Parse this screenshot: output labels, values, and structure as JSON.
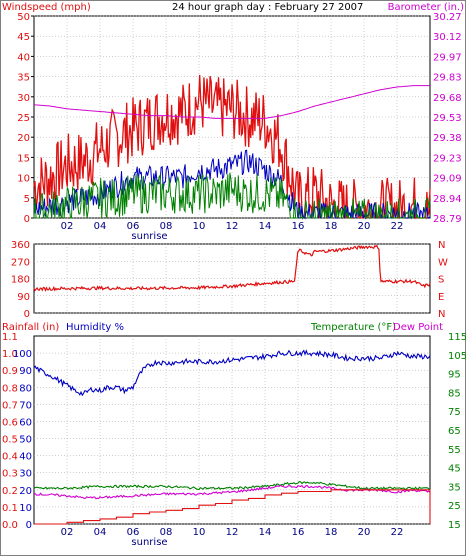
{
  "header": {
    "left_label": "Windspeed (mph)",
    "title": "24 hour graph day : February 27 2007",
    "right_label": "Barometer (in.)"
  },
  "colors": {
    "red": "#e01010",
    "blue": "#0000c0",
    "green": "#008000",
    "magenta": "#d000d0",
    "black": "#000000",
    "grid": "#a0a0a0"
  },
  "chart_data": [
    {
      "id": "wind",
      "type": "line",
      "x_range": [
        0,
        24
      ],
      "x_ticks": [
        "02",
        "04",
        "06",
        "08",
        "10",
        "12",
        "14",
        "16",
        "18",
        "20",
        "22"
      ],
      "x_tick_hours": [
        2,
        4,
        6,
        8,
        10,
        12,
        14,
        16,
        18,
        20,
        22
      ],
      "sunrise_label": "sunrise",
      "sunrise_hour": 7.0,
      "y_left_range": [
        0,
        50
      ],
      "y_left_ticks": [
        0,
        5,
        10,
        15,
        20,
        25,
        30,
        35,
        40,
        45,
        50
      ],
      "y_right_range": [
        28.79,
        30.27
      ],
      "y_right_ticks": [
        "28.79",
        "28.94",
        "29.09",
        "29.23",
        "29.38",
        "29.53",
        "29.68",
        "29.83",
        "29.97",
        "30.12",
        "30.27"
      ],
      "series": [
        {
          "axis": "left",
          "color": "#e01010",
          "style": "gust",
          "x": [
            0,
            1,
            2,
            3,
            4,
            5,
            6,
            7,
            8,
            9,
            10,
            11,
            12,
            13,
            14,
            15,
            16,
            17,
            18,
            19,
            20,
            21,
            22,
            23,
            24
          ],
          "values": [
            8,
            10,
            13,
            14,
            17,
            20,
            22,
            24,
            26,
            26,
            29,
            27,
            27,
            25,
            24,
            18,
            4,
            6,
            3,
            2,
            2,
            2,
            2,
            3,
            1
          ],
          "jitter": 8
        },
        {
          "axis": "left",
          "color": "#0000c0",
          "style": "average",
          "x": [
            0,
            1,
            2,
            3,
            4,
            5,
            6,
            7,
            8,
            9,
            10,
            11,
            12,
            13,
            14,
            15,
            16,
            17,
            18,
            19,
            20,
            21,
            22,
            23,
            24
          ],
          "values": [
            2,
            3,
            4,
            5,
            6,
            8,
            10,
            10,
            10,
            10,
            12,
            12,
            13,
            14,
            12,
            9,
            1,
            1,
            1,
            1,
            1,
            1,
            1,
            1,
            0
          ],
          "jitter": 3
        },
        {
          "axis": "left",
          "color": "#008000",
          "style": "speed",
          "x": [
            0,
            1,
            2,
            3,
            4,
            5,
            6,
            7,
            8,
            9,
            10,
            11,
            12,
            13,
            14,
            15,
            16,
            17,
            18,
            19,
            20,
            21,
            22,
            23,
            24
          ],
          "values": [
            1,
            2,
            3,
            4,
            5,
            5,
            6,
            6,
            6,
            6,
            6,
            6,
            7,
            6,
            6,
            5,
            0,
            0,
            0,
            0,
            0,
            0,
            0,
            0,
            0
          ],
          "jitter": 5
        },
        {
          "axis": "right",
          "color": "#d000d0",
          "style": "barometer",
          "x": [
            0,
            1,
            2,
            3,
            4,
            5,
            6,
            7,
            8,
            9,
            10,
            11,
            12,
            13,
            14,
            15,
            16,
            17,
            18,
            19,
            20,
            21,
            22,
            23,
            24
          ],
          "values": [
            29.62,
            29.61,
            29.59,
            29.58,
            29.57,
            29.56,
            29.55,
            29.54,
            29.54,
            29.53,
            29.53,
            29.52,
            29.52,
            29.52,
            29.52,
            29.54,
            29.57,
            29.61,
            29.64,
            29.67,
            29.7,
            29.73,
            29.75,
            29.76,
            29.76
          ],
          "jitter": 0
        }
      ]
    },
    {
      "id": "direction",
      "type": "line",
      "x_range": [
        0,
        24
      ],
      "y_left_range": [
        0,
        360
      ],
      "y_left_ticks": [
        0,
        90,
        180,
        270,
        360
      ],
      "y_right_labels": [
        "N",
        "E",
        "S",
        "W",
        "N"
      ],
      "series": [
        {
          "axis": "left",
          "color": "#e01010",
          "style": "direction",
          "x": [
            0,
            2,
            4,
            6,
            8,
            10,
            12,
            14,
            15.8,
            16.0,
            16.8,
            17.0,
            18,
            19,
            20,
            20.9,
            21.0,
            22,
            23,
            23.6,
            24
          ],
          "values": [
            125,
            128,
            130,
            128,
            130,
            132,
            140,
            155,
            165,
            330,
            300,
            320,
            325,
            335,
            345,
            345,
            165,
            165,
            165,
            140,
            150
          ],
          "jitter": 8
        }
      ]
    },
    {
      "id": "climate",
      "type": "line",
      "x_range": [
        0,
        24
      ],
      "header_left_red": "Rainfall (in)",
      "header_left_blue": "Humidity %",
      "header_right_green": "Temperature (°F)",
      "header_right_magenta": "Dew Point",
      "y_rain_ticks": [
        "0.0",
        "0.1",
        "0.2",
        "0.3",
        "0.4",
        "0.5",
        "0.6",
        "0.7",
        "0.8",
        "0.9",
        "1.0",
        "1.1"
      ],
      "y_humidity_ticks": [
        0,
        10,
        20,
        30,
        40,
        50,
        60,
        70,
        80,
        90,
        100
      ],
      "y_humidity_range": [
        0,
        110
      ],
      "y_temp_ticks": [
        15,
        25,
        35,
        45,
        55,
        65,
        75,
        85,
        95,
        105,
        115
      ],
      "y_temp_range": [
        15,
        115
      ],
      "series": [
        {
          "axis": "humidity",
          "color": "#0000c0",
          "style": "humidity",
          "x": [
            0,
            0.5,
            1,
            1.5,
            2,
            2.5,
            3,
            3.5,
            4,
            4.5,
            5,
            5.5,
            6,
            6.3,
            6.6,
            7,
            7.5,
            8,
            9,
            10,
            11,
            12,
            13,
            14,
            15,
            16,
            17,
            18,
            19,
            20,
            21,
            22,
            23,
            24
          ],
          "values": [
            92,
            89,
            87,
            84,
            81,
            78,
            76,
            79,
            78,
            80,
            80,
            78,
            80,
            86,
            90,
            93,
            95,
            94,
            95,
            95,
            95,
            96,
            97,
            98,
            100,
            100,
            100,
            99,
            97,
            97,
            97,
            100,
            98,
            98
          ],
          "jitter": 1.5
        },
        {
          "axis": "temp",
          "color": "#008000",
          "style": "temperature",
          "x": [
            0,
            2,
            4,
            6,
            8,
            10,
            12,
            14,
            15,
            16,
            17,
            18,
            19,
            20,
            21,
            22,
            23,
            24
          ],
          "values": [
            34,
            34,
            35,
            35,
            35,
            34,
            34,
            35,
            36,
            37,
            37,
            36,
            35,
            34,
            34,
            34,
            34,
            34
          ],
          "jitter": 0.6
        },
        {
          "axis": "temp",
          "color": "#d000d0",
          "style": "dewpoint",
          "x": [
            0,
            2,
            3,
            4,
            6,
            8,
            10,
            12,
            14,
            15,
            16,
            17,
            18,
            19,
            20,
            21,
            22,
            23,
            24
          ],
          "values": [
            31,
            30,
            29,
            29,
            30,
            31,
            31,
            32,
            34,
            35,
            35,
            35,
            34,
            33,
            33,
            33,
            32,
            33,
            32
          ],
          "jitter": 0.6
        },
        {
          "axis": "rain",
          "color": "#e01010",
          "style": "rain",
          "x": [
            0,
            1,
            2,
            3,
            4,
            5,
            6,
            7,
            8,
            9,
            10,
            11,
            12,
            13,
            14,
            15,
            16,
            17,
            18,
            19,
            20,
            21,
            22,
            23,
            23.9,
            24
          ],
          "values": [
            0.0,
            0.0,
            0.01,
            0.02,
            0.03,
            0.04,
            0.06,
            0.07,
            0.08,
            0.09,
            0.11,
            0.12,
            0.14,
            0.15,
            0.17,
            0.18,
            0.19,
            0.19,
            0.2,
            0.2,
            0.2,
            0.2,
            0.2,
            0.2,
            0.2,
            0.0
          ],
          "jitter": 0
        }
      ]
    }
  ]
}
